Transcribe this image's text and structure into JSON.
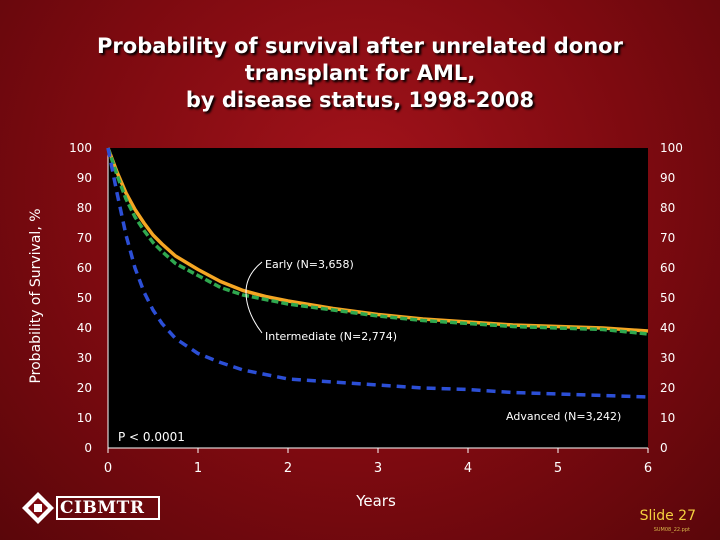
{
  "header": {
    "title_lines": [
      "Probability of survival after unrelated donor",
      "transplant for AML,",
      "by disease status, 1998-2008"
    ]
  },
  "footer": {
    "logo_text": "CIBMTR",
    "slide_label": "Slide 27",
    "slide_sub": "SUM08_22.ppt"
  },
  "chart_data": {
    "type": "line",
    "title": "Probability of survival after unrelated donor transplant for AML, by disease status, 1998-2008",
    "xlabel": "Years",
    "ylabel": "Probability of Survival, %",
    "xlim": [
      0,
      6
    ],
    "ylim": [
      0,
      100
    ],
    "x_ticks": [
      "0",
      "1",
      "2",
      "3",
      "4",
      "5",
      "6"
    ],
    "y_ticks": [
      "0",
      "10",
      "20",
      "30",
      "40",
      "50",
      "60",
      "70",
      "80",
      "90",
      "100"
    ],
    "grid": false,
    "annotation": "P < 0.0001",
    "colors": {
      "early": "#f5a623",
      "intermediate": "#2fa84f",
      "advanced": "#2c4fd6",
      "plot_bg": "#000000"
    },
    "series": [
      {
        "name": "Early (N=3,658)",
        "key": "early",
        "x": [
          0,
          0.1,
          0.2,
          0.3,
          0.4,
          0.5,
          0.6,
          0.75,
          1.0,
          1.25,
          1.5,
          1.75,
          2.0,
          2.5,
          3.0,
          3.5,
          4.0,
          4.5,
          5.0,
          5.5,
          6.0
        ],
        "values": [
          100,
          92,
          85,
          79.5,
          75,
          71,
          68,
          64,
          59.5,
          55.5,
          52.5,
          50.5,
          49,
          46.5,
          44.5,
          43,
          42,
          41,
          40.5,
          40,
          39
        ]
      },
      {
        "name": "Intermediate (N=2,774)",
        "key": "intermediate",
        "x": [
          0,
          0.1,
          0.2,
          0.3,
          0.4,
          0.5,
          0.6,
          0.75,
          1.0,
          1.25,
          1.5,
          1.75,
          2.0,
          2.5,
          3.0,
          3.5,
          4.0,
          4.5,
          5.0,
          5.5,
          6.0
        ],
        "values": [
          100,
          91,
          83,
          77,
          72.5,
          68.5,
          65.5,
          61.5,
          57.5,
          53.5,
          51,
          49.5,
          48,
          46,
          44,
          42.5,
          41.5,
          40.5,
          40,
          39.5,
          38
        ]
      },
      {
        "name": "Advanced (N=3,242)",
        "key": "advanced",
        "x": [
          0,
          0.1,
          0.2,
          0.3,
          0.4,
          0.5,
          0.6,
          0.75,
          1.0,
          1.25,
          1.5,
          1.75,
          2.0,
          2.5,
          3.0,
          3.5,
          4.0,
          4.5,
          5.0,
          5.5,
          6.0
        ],
        "values": [
          100,
          85,
          71,
          60,
          52,
          46,
          41.5,
          36.5,
          31.5,
          28.5,
          26,
          24.5,
          23,
          22,
          21,
          20,
          19.5,
          18.5,
          18,
          17.5,
          17
        ]
      }
    ],
    "labels": [
      {
        "text": "Early (N=3,658)",
        "series": "early"
      },
      {
        "text": "Intermediate (N=2,774)",
        "series": "intermediate"
      },
      {
        "text": "Advanced (N=3,242)",
        "series": "advanced"
      }
    ]
  }
}
